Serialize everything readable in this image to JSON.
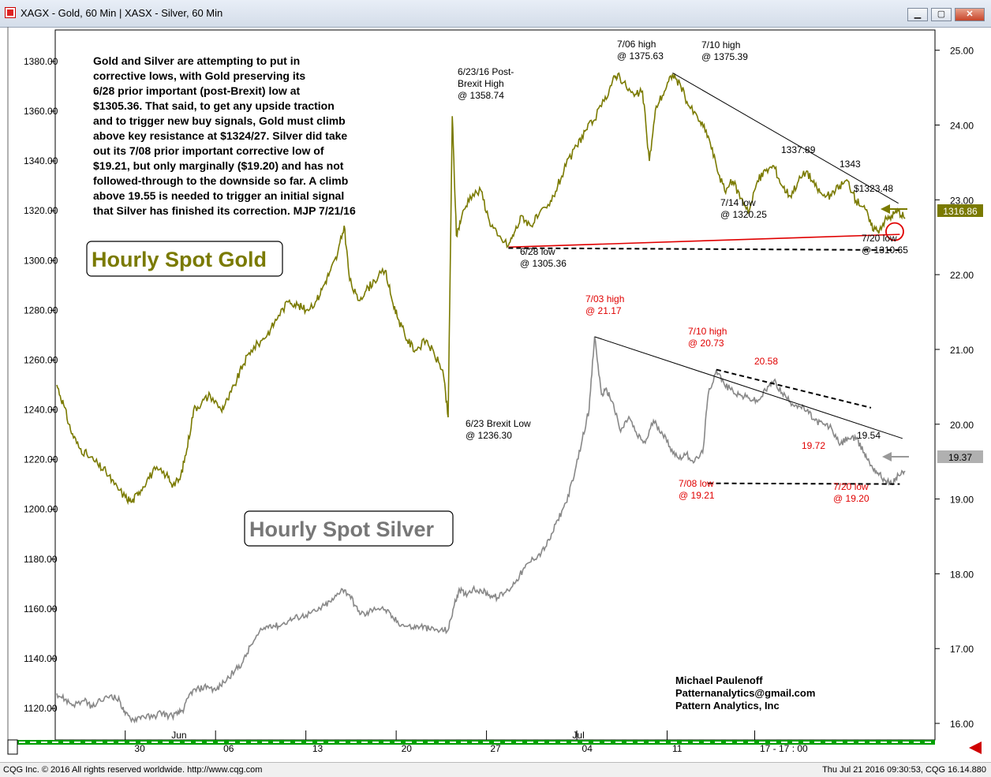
{
  "window": {
    "title": "XAGX - Gold, 60 Min   |   XASX - Silver, 60 Min"
  },
  "note": {
    "lines": [
      "Gold and Silver are attempting to put in",
      "corrective lows, with Gold preserving its",
      "6/28 prior important (post-Brexit) low at",
      "$1305.36. That said, to get any upside traction",
      "and to trigger new buy signals, Gold must climb",
      "above key resistance at $1324/27. Silver did take",
      "out its 7/08 prior important corrective low of",
      "$19.21, but only marginally ($19.20) and has not",
      "followed-through to the downside so far. A climb",
      "above 19.55 is needed to trigger an initial signal",
      "that Silver has finished its correction. MJP 7/21/16"
    ]
  },
  "labels": {
    "gold": "Hourly Spot Gold",
    "silver": "Hourly Spot Silver"
  },
  "credit": [
    "Michael Paulenoff",
    "Patternanalytics@gmail.com",
    "Pattern Analytics, Inc"
  ],
  "footer": {
    "left": "CQG Inc. © 2016 All rights reserved worldwide. http://www.cqg.com",
    "right": "Thu Jul 21 2016 09:30:53, CQG 16.14.880"
  },
  "colors": {
    "gold": "#7a7a00",
    "silver": "#888888",
    "annotation_red": "#e00000",
    "trendline": "#000000",
    "scrollbar": "#00a000"
  },
  "chart_data": [
    {
      "type": "line",
      "series_name": "XAGX - Gold, 60 Min",
      "axis": "left",
      "ylim": [
        1108,
        1392
      ],
      "yticks": [
        1120,
        1140,
        1160,
        1180,
        1200,
        1220,
        1240,
        1260,
        1280,
        1300,
        1320,
        1340,
        1360,
        1380
      ],
      "last_price": "1316.86",
      "points": [
        [
          0,
          1250
        ],
        [
          0.5,
          1242
        ],
        [
          1,
          1232
        ],
        [
          1.6,
          1225
        ],
        [
          2.2,
          1222
        ],
        [
          3,
          1218
        ],
        [
          3.6,
          1215
        ],
        [
          4.2,
          1210
        ],
        [
          5,
          1205
        ],
        [
          5.5,
          1203
        ],
        [
          6,
          1207
        ],
        [
          6.6,
          1212
        ],
        [
          7.2,
          1216
        ],
        [
          8,
          1214
        ],
        [
          8.5,
          1210
        ],
        [
          9,
          1212
        ],
        [
          9.5,
          1224
        ],
        [
          10,
          1240
        ],
        [
          10.6,
          1243
        ],
        [
          11.2,
          1246
        ],
        [
          12,
          1240
        ],
        [
          12.5,
          1244
        ],
        [
          13,
          1250
        ],
        [
          13.6,
          1258
        ],
        [
          14.2,
          1264
        ],
        [
          15,
          1268
        ],
        [
          15.6,
          1272
        ],
        [
          16.2,
          1278
        ],
        [
          17,
          1284
        ],
        [
          17.6,
          1282
        ],
        [
          18.2,
          1280
        ],
        [
          19,
          1284
        ],
        [
          19.5,
          1290
        ],
        [
          20,
          1296
        ],
        [
          20.5,
          1302
        ],
        [
          21,
          1314
        ],
        [
          21.4,
          1292
        ],
        [
          22,
          1284
        ],
        [
          22.6,
          1288
        ],
        [
          23.2,
          1292
        ],
        [
          24,
          1296
        ],
        [
          24.5,
          1284
        ],
        [
          25,
          1276
        ],
        [
          25.6,
          1268
        ],
        [
          26.2,
          1264
        ],
        [
          27,
          1268
        ],
        [
          27.6,
          1262
        ],
        [
          28.2,
          1256
        ],
        [
          28.6,
          1237
        ],
        [
          28.9,
          1358
        ],
        [
          29.2,
          1310
        ],
        [
          29.6,
          1318
        ],
        [
          30.2,
          1326
        ],
        [
          31,
          1328
        ],
        [
          31.6,
          1316
        ],
        [
          32.2,
          1310
        ],
        [
          33,
          1306
        ],
        [
          33.5,
          1312
        ],
        [
          34,
          1318
        ],
        [
          34.6,
          1314
        ],
        [
          35.2,
          1318
        ],
        [
          36,
          1322
        ],
        [
          36.6,
          1330
        ],
        [
          37.2,
          1338
        ],
        [
          38,
          1346
        ],
        [
          38.6,
          1352
        ],
        [
          39.2,
          1356
        ],
        [
          40,
          1364
        ],
        [
          40.6,
          1372
        ],
        [
          41,
          1375
        ],
        [
          41.6,
          1370
        ],
        [
          42.2,
          1366
        ],
        [
          42.8,
          1368
        ],
        [
          43.3,
          1340
        ],
        [
          43.8,
          1362
        ],
        [
          44.4,
          1368
        ],
        [
          45,
          1375
        ],
        [
          45.6,
          1370
        ],
        [
          46.2,
          1362
        ],
        [
          47,
          1356
        ],
        [
          47.6,
          1350
        ],
        [
          48.2,
          1338
        ],
        [
          48.8,
          1328
        ],
        [
          49.4,
          1332
        ],
        [
          50,
          1325
        ],
        [
          50.6,
          1320
        ],
        [
          51.2,
          1332
        ],
        [
          51.8,
          1336
        ],
        [
          52.4,
          1338
        ],
        [
          53,
          1330
        ],
        [
          53.6,
          1326
        ],
        [
          54.2,
          1332
        ],
        [
          54.8,
          1336
        ],
        [
          55.4,
          1330
        ],
        [
          56,
          1326
        ],
        [
          56.6,
          1326
        ],
        [
          57.2,
          1330
        ],
        [
          57.8,
          1332
        ],
        [
          58.4,
          1324
        ],
        [
          59,
          1322
        ],
        [
          59.5,
          1314
        ],
        [
          60,
          1312
        ],
        [
          60.5,
          1316
        ],
        [
          61,
          1318
        ],
        [
          61.5,
          1320
        ],
        [
          62,
          1317
        ]
      ]
    },
    {
      "type": "line",
      "series_name": "XASX - Silver, 60 Min",
      "axis": "right",
      "ylim": [
        15.8,
        25.25
      ],
      "yticks": [
        16.0,
        17.0,
        18.0,
        19.0,
        20.0,
        21.0,
        22.0,
        23.0,
        24.0,
        25.0
      ],
      "last_price": "19.37",
      "points": [
        [
          0,
          16.4
        ],
        [
          0.6,
          16.32
        ],
        [
          1.2,
          16.25
        ],
        [
          2,
          16.3
        ],
        [
          2.6,
          16.22
        ],
        [
          3.2,
          16.3
        ],
        [
          4,
          16.38
        ],
        [
          4.6,
          16.3
        ],
        [
          5,
          16.12
        ],
        [
          5.6,
          16.05
        ],
        [
          6.2,
          16.1
        ],
        [
          7,
          16.08
        ],
        [
          7.6,
          16.15
        ],
        [
          8.2,
          16.1
        ],
        [
          8.8,
          16.12
        ],
        [
          9.3,
          16.2
        ],
        [
          9.8,
          16.42
        ],
        [
          10.4,
          16.46
        ],
        [
          11,
          16.5
        ],
        [
          11.6,
          16.44
        ],
        [
          12.2,
          16.55
        ],
        [
          13,
          16.7
        ],
        [
          13.6,
          16.82
        ],
        [
          14.2,
          17.05
        ],
        [
          15,
          17.25
        ],
        [
          15.6,
          17.32
        ],
        [
          16.2,
          17.3
        ],
        [
          17,
          17.38
        ],
        [
          17.6,
          17.42
        ],
        [
          18.2,
          17.45
        ],
        [
          19,
          17.5
        ],
        [
          19.6,
          17.58
        ],
        [
          20.2,
          17.65
        ],
        [
          20.8,
          17.8
        ],
        [
          21.4,
          17.72
        ],
        [
          22,
          17.5
        ],
        [
          22.6,
          17.45
        ],
        [
          23.2,
          17.55
        ],
        [
          24,
          17.52
        ],
        [
          24.6,
          17.4
        ],
        [
          25.2,
          17.32
        ],
        [
          26,
          17.28
        ],
        [
          26.6,
          17.3
        ],
        [
          27.2,
          17.26
        ],
        [
          28,
          17.24
        ],
        [
          28.6,
          17.25
        ],
        [
          29,
          17.55
        ],
        [
          29.4,
          17.8
        ],
        [
          29.8,
          17.72
        ],
        [
          30.4,
          17.8
        ],
        [
          31,
          17.78
        ],
        [
          31.6,
          17.72
        ],
        [
          32.2,
          17.68
        ],
        [
          33,
          17.78
        ],
        [
          33.6,
          17.92
        ],
        [
          34.2,
          18.08
        ],
        [
          34.8,
          18.2
        ],
        [
          35.4,
          18.28
        ],
        [
          36,
          18.45
        ],
        [
          36.6,
          18.72
        ],
        [
          37.2,
          18.95
        ],
        [
          37.8,
          19.3
        ],
        [
          38.4,
          19.8
        ],
        [
          38.9,
          20.2
        ],
        [
          39.3,
          21.17
        ],
        [
          39.8,
          20.4
        ],
        [
          40.2,
          20.45
        ],
        [
          40.6,
          20.3
        ],
        [
          41.2,
          19.9
        ],
        [
          41.8,
          20.1
        ],
        [
          42.4,
          19.85
        ],
        [
          43,
          19.75
        ],
        [
          43.6,
          20.05
        ],
        [
          44.2,
          19.9
        ],
        [
          44.8,
          19.7
        ],
        [
          45.4,
          19.55
        ],
        [
          46,
          19.6
        ],
        [
          46.6,
          19.5
        ],
        [
          47.2,
          19.62
        ],
        [
          47.6,
          20.4
        ],
        [
          48.2,
          20.73
        ],
        [
          48.8,
          20.52
        ],
        [
          49.4,
          20.45
        ],
        [
          50,
          20.38
        ],
        [
          50.6,
          20.35
        ],
        [
          51.2,
          20.3
        ],
        [
          51.8,
          20.45
        ],
        [
          52.4,
          20.58
        ],
        [
          53,
          20.42
        ],
        [
          53.6,
          20.3
        ],
        [
          54.2,
          20.25
        ],
        [
          54.8,
          20.18
        ],
        [
          55.4,
          20.05
        ],
        [
          56,
          20.0
        ],
        [
          56.6,
          19.95
        ],
        [
          57.2,
          19.72
        ],
        [
          57.8,
          19.82
        ],
        [
          58.4,
          19.8
        ],
        [
          59,
          19.62
        ],
        [
          59.5,
          19.45
        ],
        [
          60,
          19.35
        ],
        [
          60.5,
          19.25
        ],
        [
          61,
          19.2
        ],
        [
          61.5,
          19.32
        ],
        [
          62,
          19.37
        ]
      ]
    }
  ],
  "x_axis": {
    "tick_labels": [
      {
        "label": "30",
        "bar": 5.5
      },
      {
        "label": "Jun",
        "bar": 8.2
      },
      {
        "label": "06",
        "bar": 12
      },
      {
        "label": "13",
        "bar": 18.5
      },
      {
        "label": "20",
        "bar": 25
      },
      {
        "label": "27",
        "bar": 31.5
      },
      {
        "label": "Jul",
        "bar": 37.5
      },
      {
        "label": "04",
        "bar": 38.2
      },
      {
        "label": "11",
        "bar": 44.8
      },
      {
        "label": "17 - 17 : 00",
        "bar": 51.2
      }
    ],
    "grid_bars": [
      5,
      11.6,
      18.2,
      24.8,
      31.4,
      38,
      44.6,
      51
    ]
  },
  "annotations": {
    "gold": [
      {
        "lines": [
          "6/23/16 Post-",
          "Brexit High",
          "@ 1358.74"
        ],
        "bar": 28.9,
        "value": 1358.74,
        "color": "black"
      },
      {
        "lines": [
          "6/23 Brexit Low",
          "@ 1236.30"
        ],
        "bar": 28.6,
        "value": 1236.3,
        "color": "black"
      },
      {
        "lines": [
          "6/28 low",
          "@ 1305.36"
        ],
        "bar": 33,
        "value": 1305.36,
        "color": "black"
      },
      {
        "lines": [
          "7/06 high",
          "@ 1375.63"
        ],
        "bar": 41,
        "value": 1375.63,
        "color": "black"
      },
      {
        "lines": [
          "7/10 high",
          "@ 1375.39"
        ],
        "bar": 45,
        "value": 1375.39,
        "color": "black"
      },
      {
        "lines": [
          "7/14 low",
          "@ 1320.25"
        ],
        "bar": 50.6,
        "value": 1320.25,
        "color": "black"
      },
      {
        "lines": [
          "1337.89"
        ],
        "bar": 52.4,
        "value": 1337.89,
        "color": "black"
      },
      {
        "lines": [
          "1343"
        ],
        "bar": 58,
        "value": 1343,
        "color": "black"
      },
      {
        "lines": [
          "$1323.48"
        ],
        "bar": 60.5,
        "value": 1323.48,
        "color": "black"
      },
      {
        "lines": [
          "7/20 low",
          "@ 1310.65"
        ],
        "bar": 61,
        "value": 1310.65,
        "color": "black"
      }
    ],
    "silver": [
      {
        "lines": [
          "7/03 high",
          "@ 21.17"
        ],
        "bar": 39.3,
        "value": 21.17,
        "color": "red"
      },
      {
        "lines": [
          "7/10 high",
          "@ 20.73"
        ],
        "bar": 48.2,
        "value": 20.73,
        "color": "red"
      },
      {
        "lines": [
          "20.58"
        ],
        "bar": 52.4,
        "value": 20.58,
        "color": "red"
      },
      {
        "lines": [
          "19.72"
        ],
        "bar": 57.2,
        "value": 19.72,
        "color": "red"
      },
      {
        "lines": [
          "19.54"
        ],
        "bar": 61.5,
        "value": 19.54,
        "color": "black"
      },
      {
        "lines": [
          "7/08 low",
          "@ 19.21"
        ],
        "bar": 47.6,
        "value": 19.21,
        "color": "red"
      },
      {
        "lines": [
          "7/20 low",
          "@ 19.20"
        ],
        "bar": 61,
        "value": 19.2,
        "color": "red"
      }
    ]
  },
  "trendlines": {
    "gold": [
      {
        "from": [
          45,
          1375.39
        ],
        "to": [
          61.5,
          1323
        ],
        "color": "black",
        "style": "solid"
      },
      {
        "from": [
          33,
          1305.36
        ],
        "to": [
          61.6,
          1310.5
        ],
        "color": "red",
        "style": "solid"
      },
      {
        "from": [
          33,
          1305.0
        ],
        "to": [
          61.6,
          1304.2
        ],
        "color": "black",
        "style": "dashed"
      }
    ],
    "silver": [
      {
        "from": [
          39.3,
          21.17
        ],
        "to": [
          61.8,
          19.81
        ],
        "color": "black",
        "style": "solid"
      },
      {
        "from": [
          48.2,
          20.73
        ],
        "to": [
          59.5,
          20.22
        ],
        "color": "black",
        "style": "dashed"
      },
      {
        "from": [
          47.6,
          19.21
        ],
        "to": [
          61.6,
          19.2
        ],
        "color": "black",
        "style": "dashed"
      }
    ],
    "circle": {
      "bar": 61,
      "value": 1310.65,
      "color": "red"
    }
  }
}
